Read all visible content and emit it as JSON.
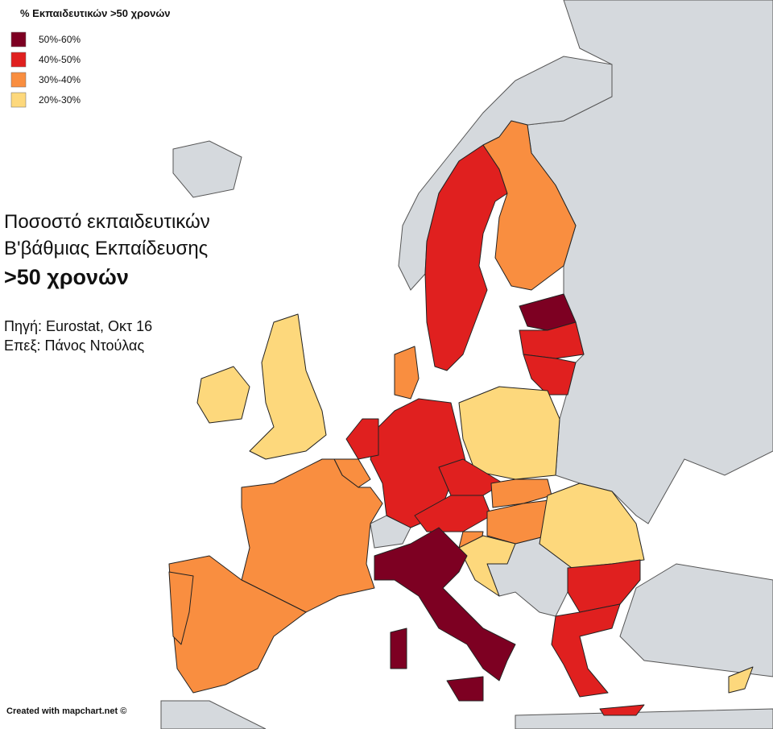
{
  "legend": {
    "title": "% Εκπαιδευτικών >50 χρονών",
    "items": [
      {
        "label": "50%-60%",
        "color": "#7d0022"
      },
      {
        "label": "40%-50%",
        "color": "#e0201f"
      },
      {
        "label": "30%-40%",
        "color": "#f98e40"
      },
      {
        "label": "20%-30%",
        "color": "#fdd87c"
      }
    ]
  },
  "heading": {
    "lines": [
      "Ποσοστό εκπαιδευτικών",
      "Β'βάθμιας Εκπαίδευσης",
      ">50 χρονών"
    ]
  },
  "source": [
    "Πηγή: Eurostat, Οκτ 16",
    "Επεξ: Πάνος Ντούλας"
  ],
  "footer": "Created with mapchart.net ©"
}
